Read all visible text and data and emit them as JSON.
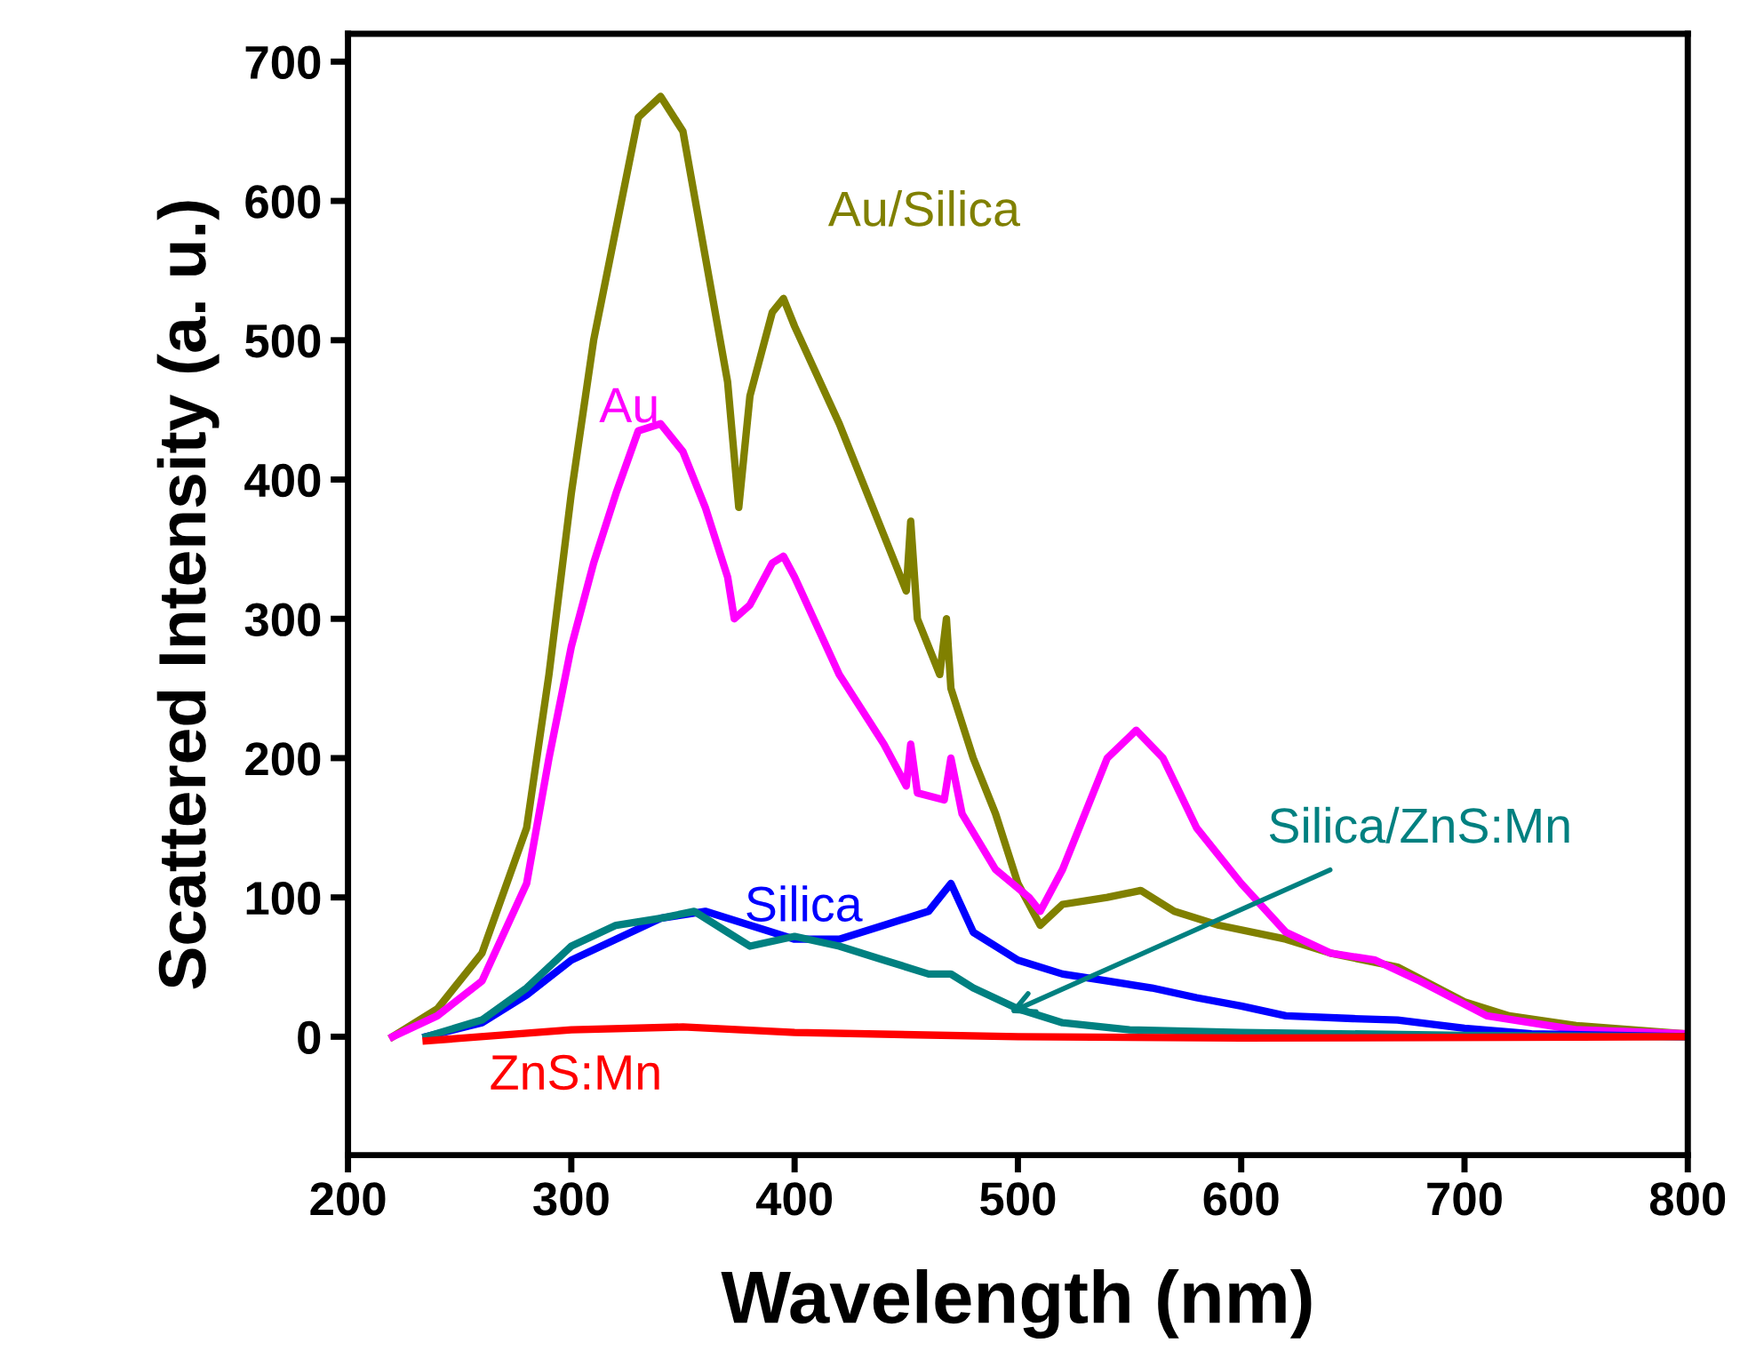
{
  "chart_data": {
    "type": "line",
    "xlabel": "Wavelength (nm)",
    "ylabel": "Scattered Intensity (a. u.)",
    "xlim": [
      200,
      800
    ],
    "xticks": [
      200,
      300,
      400,
      500,
      600,
      700,
      800
    ],
    "ylim": [
      -85,
      720
    ],
    "yticks": [
      0,
      100,
      200,
      300,
      400,
      500,
      600,
      700
    ],
    "grid": false,
    "legend": false,
    "marker": "none",
    "line_style": "solid",
    "series": [
      {
        "name": "Au/Silica",
        "color": "#808000",
        "x": [
          220,
          240,
          260,
          280,
          290,
          300,
          310,
          320,
          330,
          340,
          350,
          360,
          370,
          375,
          380,
          390,
          395,
          400,
          420,
          440,
          450,
          452,
          455,
          465,
          468,
          470,
          480,
          490,
          500,
          510,
          520,
          540,
          555,
          570,
          590,
          620,
          640,
          670,
          700,
          720,
          750,
          800
        ],
        "values": [
          0,
          20,
          60,
          150,
          260,
          390,
          500,
          580,
          660,
          675,
          650,
          560,
          470,
          380,
          460,
          520,
          530,
          510,
          440,
          360,
          320,
          370,
          300,
          260,
          300,
          250,
          200,
          160,
          110,
          80,
          95,
          100,
          105,
          90,
          80,
          70,
          60,
          50,
          25,
          15,
          8,
          2
        ]
      },
      {
        "name": "Au",
        "color": "#ff00ff",
        "x": [
          220,
          240,
          260,
          280,
          290,
          300,
          310,
          320,
          330,
          340,
          350,
          360,
          370,
          373,
          380,
          390,
          395,
          400,
          420,
          440,
          450,
          452,
          455,
          467,
          470,
          475,
          490,
          505,
          510,
          520,
          540,
          553,
          565,
          580,
          600,
          620,
          640,
          660,
          680,
          710,
          750,
          800
        ],
        "values": [
          0,
          15,
          40,
          110,
          200,
          280,
          340,
          390,
          435,
          440,
          420,
          380,
          330,
          300,
          310,
          340,
          345,
          330,
          260,
          210,
          180,
          210,
          175,
          170,
          200,
          160,
          120,
          100,
          90,
          120,
          200,
          220,
          200,
          150,
          110,
          75,
          60,
          55,
          40,
          15,
          5,
          2
        ]
      },
      {
        "name": "Silica",
        "color": "#0000ff",
        "x": [
          235,
          260,
          280,
          300,
          320,
          340,
          360,
          380,
          400,
          420,
          440,
          460,
          470,
          480,
          500,
          520,
          540,
          560,
          580,
          600,
          620,
          650,
          670,
          700,
          730,
          800
        ],
        "values": [
          0,
          10,
          30,
          55,
          70,
          85,
          90,
          80,
          70,
          70,
          80,
          90,
          110,
          75,
          55,
          45,
          40,
          35,
          28,
          22,
          15,
          13,
          12,
          6,
          2,
          0
        ]
      },
      {
        "name": "Silica/ZnS:Mn",
        "color": "#008080",
        "x": [
          235,
          260,
          280,
          300,
          320,
          340,
          355,
          370,
          380,
          400,
          420,
          440,
          460,
          470,
          480,
          500,
          520,
          550,
          600,
          700,
          800
        ],
        "values": [
          0,
          12,
          35,
          65,
          80,
          85,
          90,
          75,
          65,
          72,
          65,
          55,
          45,
          45,
          35,
          20,
          10,
          5,
          3,
          1,
          0
        ]
      },
      {
        "name": "ZnS:Mn",
        "color": "#ff0000",
        "x": [
          235,
          300,
          350,
          400,
          500,
          600,
          800
        ],
        "values": [
          -3,
          5,
          7,
          3,
          0,
          -1,
          0
        ]
      }
    ]
  }
}
